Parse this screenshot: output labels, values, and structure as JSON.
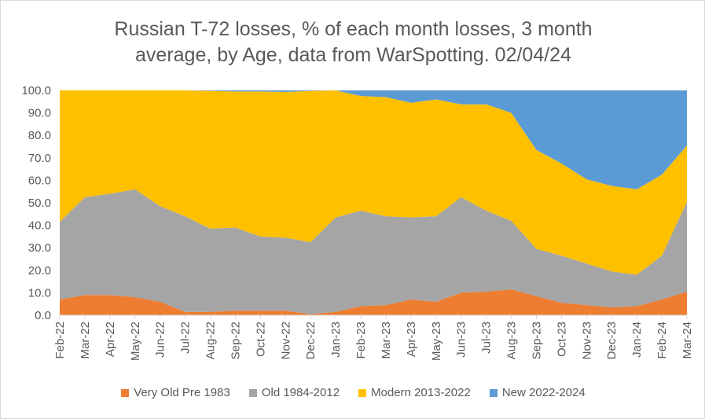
{
  "chart_data": {
    "type": "area",
    "stacked": true,
    "title": "Russian T-72 losses, % of each month losses, 3 month average, by Age, data from WarSpotting. 02/04/24",
    "title_lines": [
      "Russian T-72 losses, % of each month losses, 3 month",
      "average, by Age, data from WarSpotting. 02/04/24"
    ],
    "categories": [
      "Feb-22",
      "Mar-22",
      "Apr-22",
      "May-22",
      "Jun-22",
      "Jul-22",
      "Aug-22",
      "Sep-22",
      "Oct-22",
      "Nov-22",
      "Dec-22",
      "Jan-23",
      "Feb-23",
      "Mar-23",
      "Apr-23",
      "May-23",
      "Jun-23",
      "Jul-23",
      "Aug-23",
      "Sep-23",
      "Oct-23",
      "Nov-23",
      "Dec-23",
      "Jan-24",
      "Feb-24",
      "Mar-24"
    ],
    "ylim": [
      0,
      100
    ],
    "yticks": [
      "0.0",
      "10.0",
      "20.0",
      "30.0",
      "40.0",
      "50.0",
      "60.0",
      "70.0",
      "80.0",
      "90.0",
      "100.0"
    ],
    "grid": false,
    "legend": "bottom",
    "series": [
      {
        "name": "Very Old Pre 1983",
        "color": "#ED7D31",
        "values": [
          7,
          9,
          9,
          8,
          6,
          1.5,
          1.5,
          2,
          2,
          2,
          0.5,
          1.5,
          4,
          4.5,
          7,
          6,
          10,
          10.5,
          11.5,
          8.5,
          5.5,
          4.5,
          3.5,
          4,
          7,
          10.5
        ]
      },
      {
        "name": "Old 1984-2012",
        "color": "#A5A5A5",
        "values": [
          34.5,
          43.5,
          45,
          48,
          42.5,
          42.5,
          37,
          37,
          33,
          32.5,
          32,
          42,
          42.5,
          39.5,
          36.5,
          38,
          42.5,
          36,
          30.5,
          21,
          21,
          18.5,
          16,
          14,
          19.5,
          40
        ]
      },
      {
        "name": "Modern 2013-2022",
        "color": "#FFC000",
        "values": [
          58.5,
          47.5,
          46,
          44,
          51.5,
          56,
          61.3,
          60.5,
          64.5,
          64.8,
          67.3,
          56.5,
          51,
          53,
          51,
          52,
          41.3,
          47.3,
          48,
          44,
          41,
          37.5,
          38,
          38,
          36,
          25
        ]
      },
      {
        "name": "New 2022-2024",
        "color": "#5B9BD5",
        "values": [
          0,
          0,
          0,
          0,
          0,
          0,
          0.2,
          0.5,
          0.5,
          0.7,
          0.2,
          0,
          2.5,
          3,
          5.5,
          4,
          6.2,
          6.2,
          10,
          26.5,
          32.5,
          39.5,
          42.5,
          44,
          37.5,
          24.5
        ]
      }
    ]
  }
}
